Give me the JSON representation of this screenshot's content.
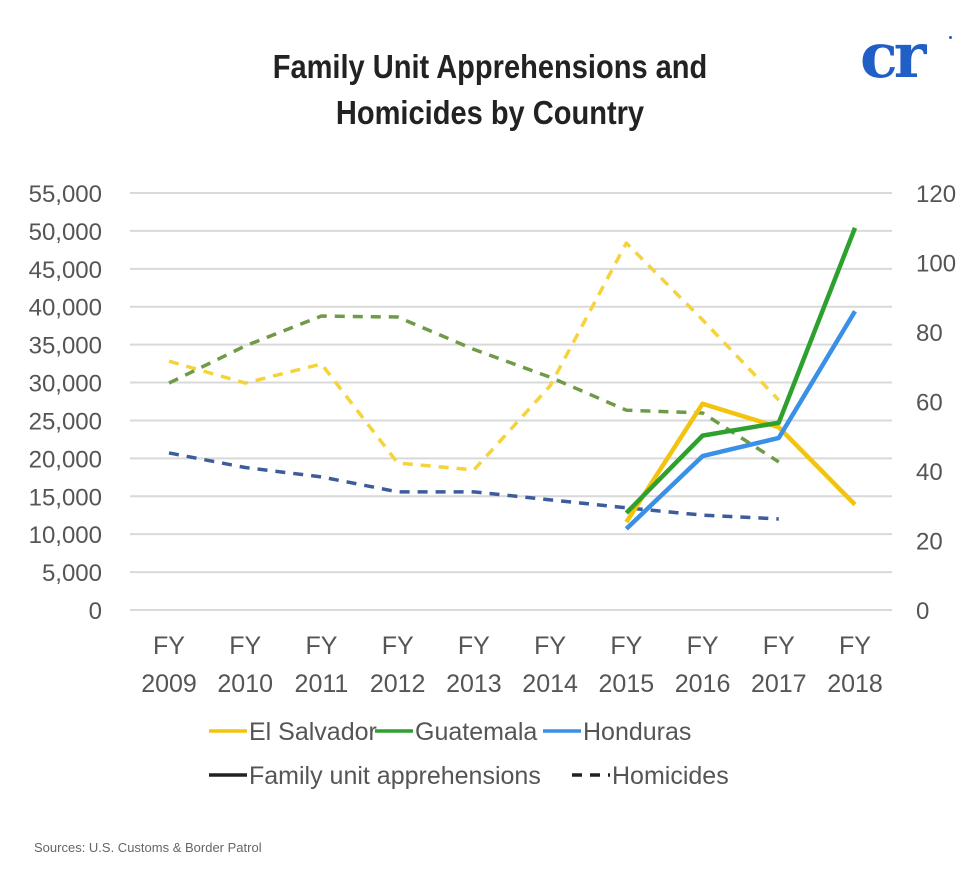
{
  "header": {
    "title_line1": "Family Unit Apprehensions and",
    "title_line2": "Homicides by Country",
    "logo_text": "cr",
    "logo_color": "#1f5fc6"
  },
  "footer": {
    "source": "Sources: U.S. Customs & Border Patrol"
  },
  "chart_data": {
    "type": "line",
    "title": "Family Unit Apprehensions and Homicides by Country",
    "x": [
      "FY 2009",
      "FY 2010",
      "FY 2011",
      "FY 2012",
      "FY 2013",
      "FY 2014",
      "FY 2015",
      "FY 2016",
      "FY 2017",
      "FY 2018"
    ],
    "x_tick_lines": [
      [
        "FY",
        "2009"
      ],
      [
        "FY",
        "2010"
      ],
      [
        "FY",
        "2011"
      ],
      [
        "FY",
        "2012"
      ],
      [
        "FY",
        "2013"
      ],
      [
        "FY",
        "2014"
      ],
      [
        "FY",
        "2015"
      ],
      [
        "FY",
        "2016"
      ],
      [
        "FY",
        "2017"
      ],
      [
        "FY",
        "2018"
      ]
    ],
    "left_axis": {
      "label": "Family unit apprehensions",
      "ylim": [
        0,
        55000
      ],
      "ticks": [
        0,
        5000,
        10000,
        15000,
        20000,
        25000,
        30000,
        35000,
        40000,
        45000,
        50000,
        55000
      ],
      "tick_labels": [
        "0",
        "5,000",
        "10,000",
        "15,000",
        "20,000",
        "25,000",
        "30,000",
        "35,000",
        "40,000",
        "45,000",
        "50,000",
        "55,000"
      ]
    },
    "right_axis": {
      "label": "Homicides",
      "ylim": [
        0,
        120
      ],
      "ticks": [
        0,
        20,
        40,
        60,
        80,
        100,
        120
      ],
      "tick_labels": [
        "0",
        "20",
        "40",
        "60",
        "80",
        "100",
        "120"
      ]
    },
    "grid": true,
    "legend_position": "bottom",
    "series": [
      {
        "name": "El Salvador",
        "measure": "Family unit apprehensions",
        "axis": "left",
        "style": "solid",
        "color": "#f2c40f",
        "values": [
          null,
          null,
          null,
          null,
          null,
          null,
          11600,
          27200,
          24100,
          13900
        ]
      },
      {
        "name": "Guatemala",
        "measure": "Family unit apprehensions",
        "axis": "left",
        "style": "solid",
        "color": "#2ea02e",
        "values": [
          null,
          null,
          null,
          null,
          null,
          null,
          12800,
          23000,
          24700,
          50400
        ]
      },
      {
        "name": "Honduras",
        "measure": "Family unit apprehensions",
        "axis": "left",
        "style": "solid",
        "color": "#3a8fe6",
        "values": [
          null,
          null,
          null,
          null,
          null,
          null,
          10700,
          20300,
          22700,
          39400
        ]
      },
      {
        "name": "El Salvador",
        "measure": "Homicides",
        "axis": "right",
        "style": "dashed",
        "color": "#f5d33a",
        "values": [
          71.6,
          65.3,
          70.8,
          42.3,
          40.3,
          64.5,
          105.6,
          83.5,
          60.4,
          null
        ]
      },
      {
        "name": "Guatemala",
        "measure": "Homicides",
        "axis": "right",
        "style": "dashed",
        "color": "#6f9a48",
        "values": [
          65.3,
          76.0,
          84.6,
          84.3,
          75.0,
          67.0,
          57.5,
          56.7,
          42.6,
          null
        ]
      },
      {
        "name": "Honduras",
        "measure": "Homicides",
        "axis": "right",
        "style": "dashed",
        "color": "#3e5c9a",
        "values": [
          45.2,
          41.0,
          38.3,
          34.0,
          34.0,
          31.7,
          29.4,
          27.3,
          26.2,
          null
        ]
      }
    ],
    "legend": [
      {
        "label": "El Salvador",
        "color": "#f2c40f",
        "style": "solid"
      },
      {
        "label": "Guatemala",
        "color": "#2ea02e",
        "style": "solid"
      },
      {
        "label": "Honduras",
        "color": "#3a8fe6",
        "style": "solid"
      },
      {
        "label": "Family unit apprehensions",
        "color": "#222222",
        "style": "solid"
      },
      {
        "label": "Homicides",
        "color": "#222222",
        "style": "dashed"
      }
    ]
  }
}
